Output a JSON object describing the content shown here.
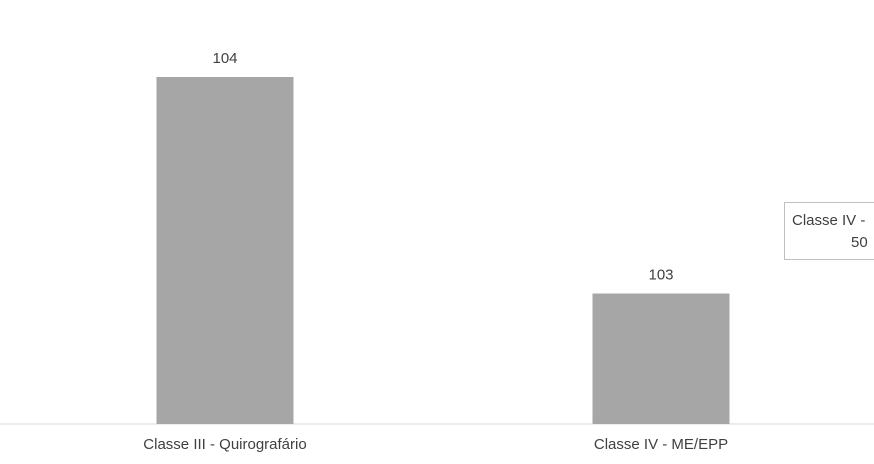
{
  "chart_data": {
    "type": "bar",
    "categories": [
      "Classe III - Quirografário",
      "Classe IV - ME/EPP"
    ],
    "values": [
      104,
      103
    ],
    "title": "",
    "xlabel": "",
    "ylabel": "",
    "grid": false,
    "colors": {
      "bar": "#a6a6a6",
      "axis": "#d9d9d9",
      "text": "#404040"
    },
    "callout": {
      "line1": "Classe IV -",
      "line2": "50"
    }
  }
}
